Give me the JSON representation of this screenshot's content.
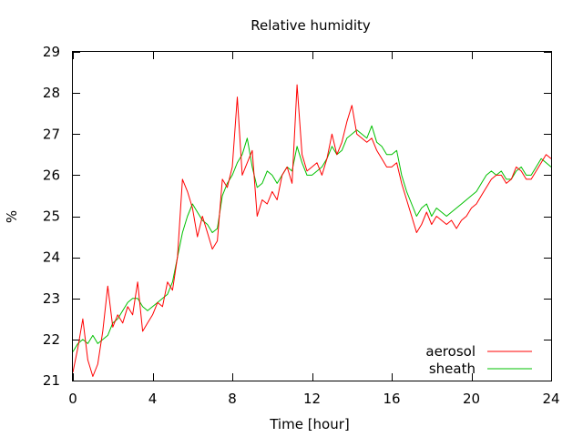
{
  "chart_data": {
    "type": "line",
    "title": "Relative humidity",
    "xlabel": "Time [hour]",
    "ylabel": "%",
    "xlim": [
      0,
      24
    ],
    "ylim": [
      21,
      29
    ],
    "xticks": [
      0,
      4,
      8,
      12,
      16,
      20,
      24
    ],
    "yticks": [
      21,
      22,
      23,
      24,
      25,
      26,
      27,
      28,
      29
    ],
    "grid": false,
    "legend_position": "bottom-right",
    "series": [
      {
        "name": "aerosol",
        "color": "#ff0000",
        "x": [
          0,
          0.25,
          0.5,
          0.75,
          1,
          1.25,
          1.5,
          1.75,
          2,
          2.25,
          2.5,
          2.75,
          3,
          3.25,
          3.5,
          3.75,
          4,
          4.25,
          4.5,
          4.75,
          5,
          5.25,
          5.5,
          5.75,
          6,
          6.25,
          6.5,
          6.75,
          7,
          7.25,
          7.5,
          7.75,
          8,
          8.25,
          8.5,
          8.75,
          9,
          9.25,
          9.5,
          9.75,
          10,
          10.25,
          10.5,
          10.75,
          11,
          11.25,
          11.5,
          11.75,
          12,
          12.25,
          12.5,
          12.75,
          13,
          13.25,
          13.5,
          13.75,
          14,
          14.25,
          14.5,
          14.75,
          15,
          15.25,
          15.5,
          15.75,
          16,
          16.25,
          16.5,
          16.75,
          17,
          17.25,
          17.5,
          17.75,
          18,
          18.25,
          18.5,
          18.75,
          19,
          19.25,
          19.5,
          19.75,
          20,
          20.25,
          20.5,
          20.75,
          21,
          21.25,
          21.5,
          21.75,
          22,
          22.25,
          22.5,
          22.75,
          23,
          23.25,
          23.5,
          23.75,
          24
        ],
        "values": [
          21.2,
          21.8,
          22.5,
          21.5,
          21.1,
          21.4,
          22.2,
          23.3,
          22.3,
          22.6,
          22.4,
          22.8,
          22.6,
          23.4,
          22.2,
          22.4,
          22.6,
          22.9,
          22.8,
          23.4,
          23.2,
          24.0,
          25.9,
          25.6,
          25.2,
          24.5,
          25.0,
          24.6,
          24.2,
          24.4,
          25.9,
          25.7,
          26.2,
          27.9,
          26.0,
          26.3,
          26.6,
          25.0,
          25.4,
          25.3,
          25.6,
          25.4,
          26.0,
          26.2,
          25.8,
          28.2,
          26.5,
          26.1,
          26.2,
          26.3,
          26.0,
          26.4,
          27.0,
          26.5,
          26.8,
          27.3,
          27.7,
          27.0,
          26.9,
          26.8,
          26.9,
          26.6,
          26.4,
          26.2,
          26.2,
          26.3,
          25.8,
          25.4,
          25.0,
          24.6,
          24.8,
          25.1,
          24.8,
          25.0,
          24.9,
          24.8,
          24.9,
          24.7,
          24.9,
          25.0,
          25.2,
          25.3,
          25.5,
          25.7,
          25.9,
          26.0,
          26.0,
          25.8,
          25.9,
          26.2,
          26.1,
          25.9,
          25.9,
          26.1,
          26.3,
          26.5,
          26.4
        ]
      },
      {
        "name": "sheath",
        "color": "#00c000",
        "x": [
          0,
          0.25,
          0.5,
          0.75,
          1,
          1.25,
          1.5,
          1.75,
          2,
          2.25,
          2.5,
          2.75,
          3,
          3.25,
          3.5,
          3.75,
          4,
          4.25,
          4.5,
          4.75,
          5,
          5.25,
          5.5,
          5.75,
          6,
          6.25,
          6.5,
          6.75,
          7,
          7.25,
          7.5,
          7.75,
          8,
          8.25,
          8.5,
          8.75,
          9,
          9.25,
          9.5,
          9.75,
          10,
          10.25,
          10.5,
          10.75,
          11,
          11.25,
          11.5,
          11.75,
          12,
          12.25,
          12.5,
          12.75,
          13,
          13.25,
          13.5,
          13.75,
          14,
          14.25,
          14.5,
          14.75,
          15,
          15.25,
          15.5,
          15.75,
          16,
          16.25,
          16.5,
          16.75,
          17,
          17.25,
          17.5,
          17.75,
          18,
          18.25,
          18.5,
          18.75,
          19,
          19.25,
          19.5,
          19.75,
          20,
          20.25,
          20.5,
          20.75,
          21,
          21.25,
          21.5,
          21.75,
          22,
          22.25,
          22.5,
          22.75,
          23,
          23.25,
          23.5,
          23.75,
          24
        ],
        "values": [
          21.7,
          21.9,
          22.0,
          21.9,
          22.1,
          21.9,
          22.0,
          22.1,
          22.4,
          22.5,
          22.7,
          22.9,
          23.0,
          23.0,
          22.8,
          22.7,
          22.8,
          22.9,
          23.0,
          23.1,
          23.4,
          24.0,
          24.6,
          25.0,
          25.3,
          25.1,
          24.9,
          24.8,
          24.6,
          24.7,
          25.5,
          25.8,
          26.0,
          26.3,
          26.5,
          26.9,
          26.2,
          25.7,
          25.8,
          26.1,
          26.0,
          25.8,
          26.0,
          26.2,
          26.1,
          26.7,
          26.3,
          26.0,
          26.0,
          26.1,
          26.2,
          26.4,
          26.7,
          26.5,
          26.6,
          26.9,
          27.0,
          27.1,
          27.0,
          26.9,
          27.2,
          26.8,
          26.7,
          26.5,
          26.5,
          26.6,
          26.0,
          25.6,
          25.3,
          25.0,
          25.2,
          25.3,
          25.0,
          25.2,
          25.1,
          25.0,
          25.1,
          25.2,
          25.3,
          25.4,
          25.5,
          25.6,
          25.8,
          26.0,
          26.1,
          26.0,
          26.1,
          25.9,
          25.9,
          26.1,
          26.2,
          26.0,
          26.0,
          26.2,
          26.4,
          26.3,
          26.2
        ]
      }
    ]
  }
}
